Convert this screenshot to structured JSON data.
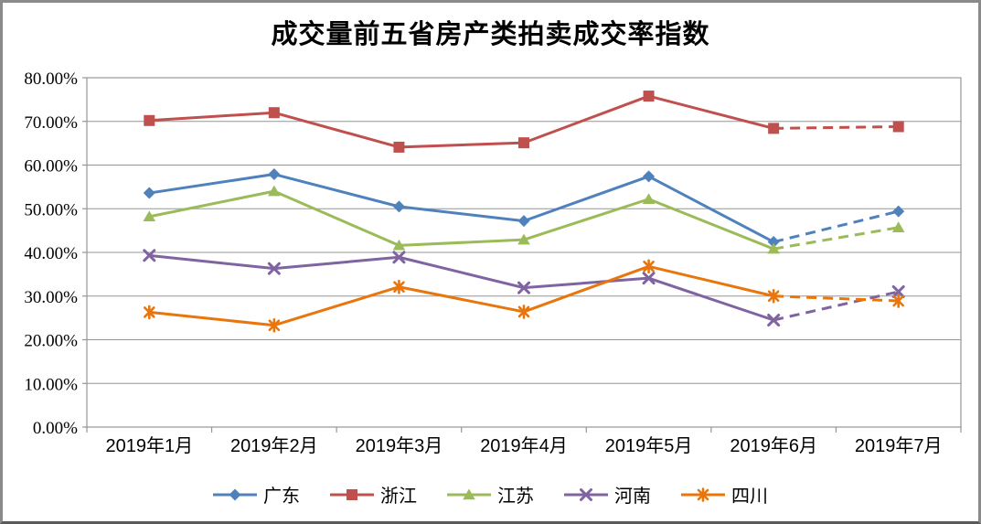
{
  "chart_data": {
    "type": "line",
    "title": "成交量前五省房产类拍卖成交率指数",
    "categories": [
      "2019年1月",
      "2019年2月",
      "2019年3月",
      "2019年4月",
      "2019年5月",
      "2019年6月",
      "2019年7月"
    ],
    "series": [
      {
        "name": "广东",
        "color": "#4F81BD",
        "marker": "diamond",
        "values": [
          53.6,
          57.9,
          50.5,
          47.2,
          57.4,
          42.4,
          49.4
        ]
      },
      {
        "name": "浙江",
        "color": "#C0504D",
        "marker": "square",
        "values": [
          70.2,
          72.0,
          64.1,
          65.1,
          75.8,
          68.4,
          68.8
        ]
      },
      {
        "name": "江苏",
        "color": "#9BBB59",
        "marker": "triangle",
        "values": [
          48.2,
          54.0,
          41.6,
          42.9,
          52.2,
          40.8,
          45.7
        ]
      },
      {
        "name": "河南",
        "color": "#8064A2",
        "marker": "x",
        "values": [
          39.3,
          36.3,
          38.9,
          31.9,
          34.1,
          24.5,
          31.0
        ]
      },
      {
        "name": "四川",
        "color": "#E8760D",
        "marker": "asterisk",
        "values": [
          26.3,
          23.3,
          32.1,
          26.4,
          36.8,
          30.0,
          28.9
        ]
      }
    ],
    "dashed_segment": {
      "from_category": "2019年6月",
      "to_category": "2019年7月",
      "applies_to": "all_series",
      "note": "last segment drawn dashed (forecast style)"
    },
    "y_axis": {
      "min": 0,
      "max": 80,
      "step": 10,
      "tick_labels": [
        "80.00%",
        "70.00%",
        "60.00%",
        "50.00%",
        "40.00%",
        "30.00%",
        "20.00%",
        "10.00%",
        "0.00%"
      ],
      "format": "percent"
    },
    "grid": true,
    "legend_position": "bottom",
    "colors": {
      "axis": "#969696",
      "grid": "#969696",
      "text": "#000000",
      "background": "#FFFFFF",
      "frame": "#8A8A8A"
    }
  }
}
